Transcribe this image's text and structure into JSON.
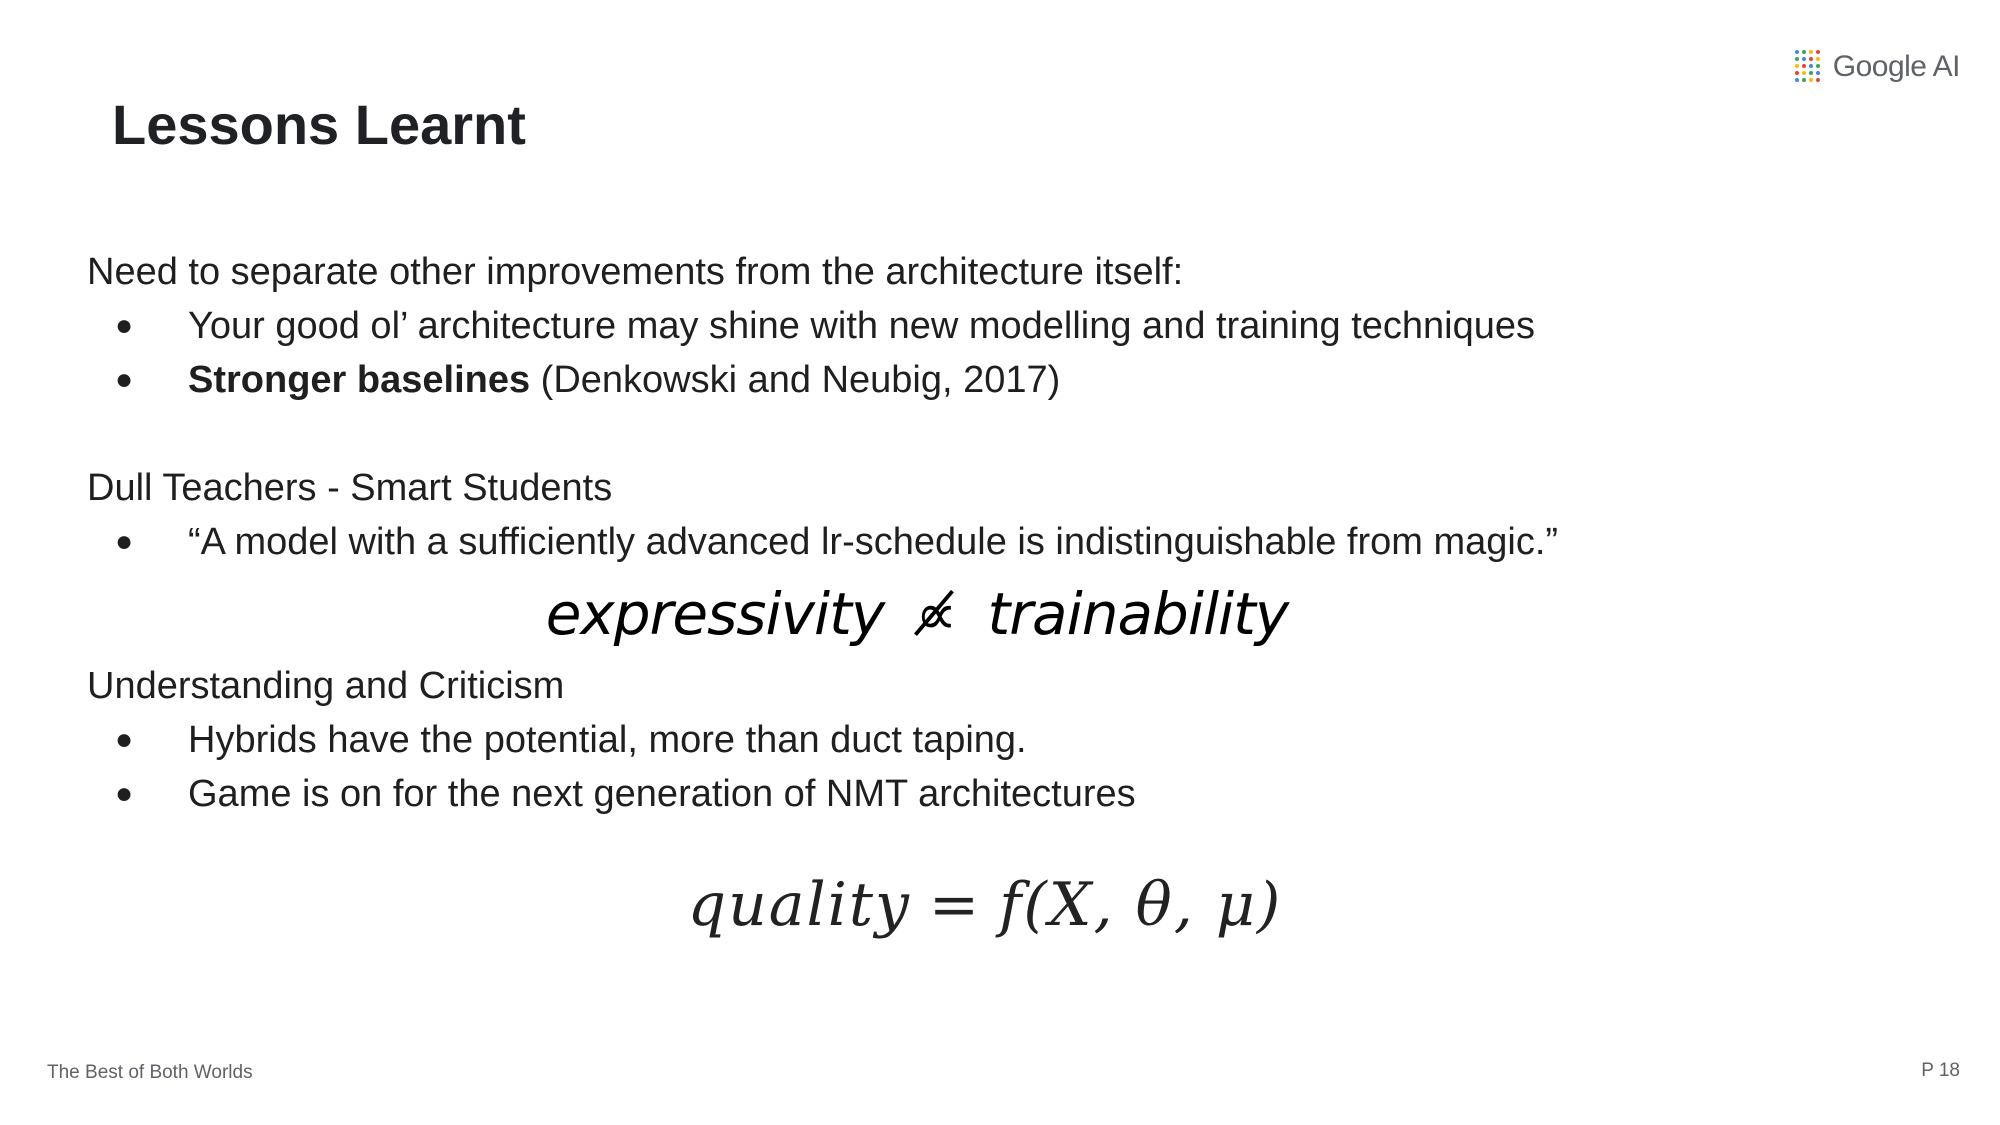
{
  "brand": {
    "logo_text": "Google AI",
    "logo_colors": [
      "#4285F4",
      "#EA4335",
      "#FBBC05",
      "#34A853"
    ]
  },
  "slide": {
    "title": "Lessons Learnt",
    "sections": [
      {
        "heading": "Need to separate other improvements from the architecture itself:",
        "bullets": [
          {
            "bold": "",
            "text": "Your good ol’ architecture may shine with new modelling and training techniques"
          },
          {
            "bold": "Stronger baselines",
            "text": " (Denkowski and Neubig, 2017)"
          }
        ]
      },
      {
        "heading": "Dull Teachers - Smart Students",
        "bullets": [
          {
            "bold": "",
            "text": "“A model with a sufficiently advanced lr-schedule is indistinguishable from magic.”"
          }
        ]
      },
      {
        "heading": "Understanding and Criticism",
        "bullets": [
          {
            "bold": "",
            "text": "Hybrids have the potential, more than duct taping."
          },
          {
            "bold": "",
            "text": "Game is on for the next generation of NMT architectures"
          }
        ]
      }
    ],
    "equation_1": {
      "left": "expressivity",
      "relation": "∝̸",
      "right": "trainability"
    },
    "equation_2": {
      "left": "quality",
      "operator": "=",
      "right": "f(X, θ, μ)"
    }
  },
  "footer": {
    "deck_title": "The Best of Both Worlds",
    "page_number": "P 18"
  }
}
